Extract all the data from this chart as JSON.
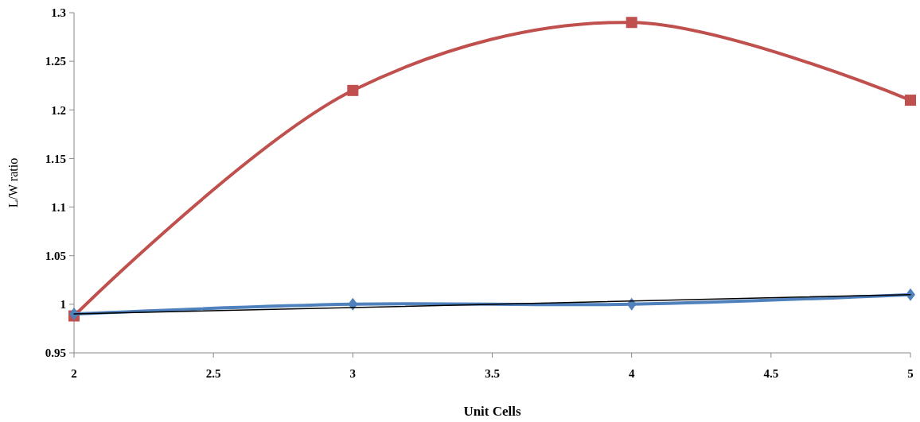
{
  "chart_data": {
    "type": "line",
    "xlabel": "Unit Cells",
    "ylabel": "L/W ratio",
    "x": [
      2,
      3,
      4,
      5
    ],
    "xlim": [
      2,
      5
    ],
    "xticks": [
      2,
      2.5,
      3,
      3.5,
      4,
      4.5,
      5
    ],
    "ylim": [
      0.95,
      1.3
    ],
    "yticks": [
      0.95,
      1,
      1.05,
      1.1,
      1.15,
      1.2,
      1.25,
      1.3
    ],
    "grid": false,
    "series": [
      {
        "color": "#c0504d",
        "marker": "square",
        "values": [
          0.988,
          1.22,
          1.29,
          1.21
        ]
      },
      {
        "color": "#4f81bd",
        "marker": "diamond",
        "values": [
          0.99,
          1.0,
          1.0,
          1.01
        ]
      },
      {
        "type": "line",
        "color": "#000000",
        "marker": "none",
        "x": [
          2,
          5
        ],
        "values": [
          0.99,
          1.01
        ]
      }
    ]
  }
}
